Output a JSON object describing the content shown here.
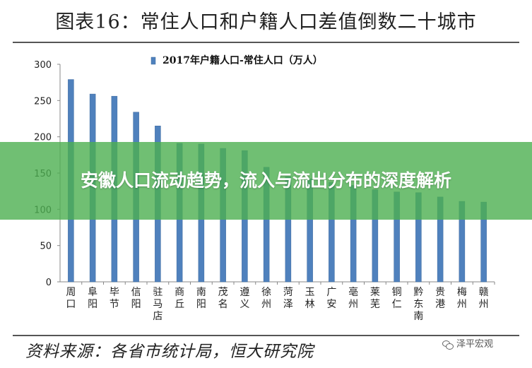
{
  "figure_title": "图表16：常住人口和户籍人口差值倒数二十城市",
  "source_note": "资料来源：各省市统计局，恒大研究院",
  "watermark": "泽平宏观",
  "banner": {
    "headline": "安徽人口流动趋势，流入与流出分布的深度解析"
  },
  "colors": {
    "bar": "#4f81bd",
    "bar_edge": "#3d6a9e",
    "banner": "#4caf50"
  },
  "chart_data": {
    "type": "bar",
    "title": "2017年户籍人口-常住人口（万人）",
    "categories": [
      "周口",
      "阜阳",
      "毕节",
      "信阳",
      "驻马店",
      "商丘",
      "南阳",
      "茂名",
      "遵义",
      "徐州",
      "菏泽",
      "玉林",
      "广安",
      "亳州",
      "莱芜",
      "铜仁",
      "黔东南",
      "贵港",
      "梅州",
      "赣州"
    ],
    "category_labels": [
      [
        "周",
        "口"
      ],
      [
        "阜",
        "阳"
      ],
      [
        "毕",
        "节"
      ],
      [
        "信",
        "阳"
      ],
      [
        "驻",
        "马",
        "店"
      ],
      [
        "商",
        "丘"
      ],
      [
        "南",
        "阳"
      ],
      [
        "茂",
        "名"
      ],
      [
        "遵",
        "义"
      ],
      [
        "徐",
        "州"
      ],
      [
        "菏",
        "泽"
      ],
      [
        "玉",
        "林"
      ],
      [
        "广",
        "安"
      ],
      [
        "亳",
        "州"
      ],
      [
        "莱",
        "芜"
      ],
      [
        "铜",
        "仁"
      ],
      [
        "黔",
        "东",
        "南"
      ],
      [
        "贵",
        "港"
      ],
      [
        "梅",
        "州"
      ],
      [
        "赣",
        "州"
      ]
    ],
    "values": [
      279,
      259,
      256,
      234,
      215,
      191,
      190,
      184,
      181,
      158,
      145,
      142,
      137,
      133,
      127,
      124,
      123,
      117,
      111,
      110
    ],
    "ylim": [
      0,
      300
    ],
    "yticks": [
      0,
      50,
      100,
      150,
      200,
      250,
      300
    ],
    "legend_position": "top-center",
    "grid": false
  }
}
